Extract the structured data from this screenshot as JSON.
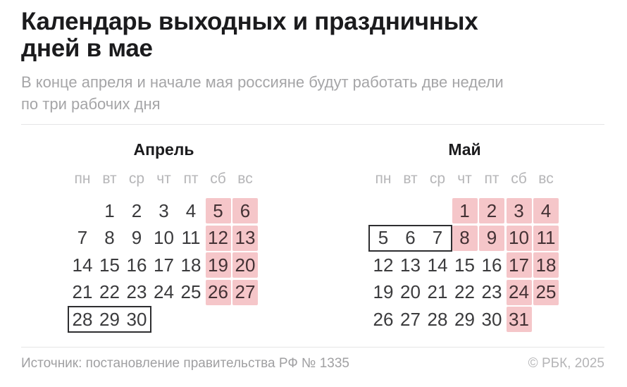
{
  "header": {
    "title_lines": [
      "Календарь выходных и праздничных",
      "дней в мае"
    ],
    "subtitle_lines": [
      "В конце апреля и начале мая россияне будут работать две недели",
      "по три рабочих дня"
    ]
  },
  "weekdays": [
    "пн",
    "вт",
    "ср",
    "чт",
    "пт",
    "сб",
    "вс"
  ],
  "calendars": [
    {
      "name": "Апрель",
      "weeks": [
        [
          "",
          "1",
          "2",
          "3",
          "4",
          "5",
          "6"
        ],
        [
          "7",
          "8",
          "9",
          "10",
          "11",
          "12",
          "13"
        ],
        [
          "14",
          "15",
          "16",
          "17",
          "18",
          "19",
          "20"
        ],
        [
          "21",
          "22",
          "23",
          "24",
          "25",
          "26",
          "27"
        ],
        [
          "28",
          "29",
          "30",
          "",
          "",
          "",
          ""
        ]
      ],
      "holidays": [
        "5",
        "6",
        "12",
        "13",
        "19",
        "20",
        "26",
        "27"
      ],
      "boxed_days": [
        "28",
        "29",
        "30"
      ]
    },
    {
      "name": "Май",
      "weeks": [
        [
          "",
          "",
          "",
          "1",
          "2",
          "3",
          "4"
        ],
        [
          "5",
          "6",
          "7",
          "8",
          "9",
          "10",
          "11"
        ],
        [
          "12",
          "13",
          "14",
          "15",
          "16",
          "17",
          "18"
        ],
        [
          "19",
          "20",
          "21",
          "22",
          "23",
          "24",
          "25"
        ],
        [
          "26",
          "27",
          "28",
          "29",
          "30",
          "31",
          ""
        ]
      ],
      "holidays": [
        "1",
        "2",
        "3",
        "4",
        "8",
        "9",
        "10",
        "11",
        "17",
        "18",
        "24",
        "25",
        "31"
      ],
      "boxed_days": [
        "5",
        "6",
        "7"
      ]
    }
  ],
  "footer": {
    "source": "Источник: постановление правительства РФ № 1335",
    "copyright": "© РБК, 2025"
  },
  "colors": {
    "title": "#1b1b1d",
    "muted": "#a5a5a7",
    "weekday": "#b6b6b8",
    "day": "#3b3b3d",
    "holiday_bg": "#f5c6c9",
    "holiday_day": "#433134",
    "box_border": "#2e2e30",
    "divider": "#e5e5e6",
    "footer_left": "#a0a0a2",
    "footer_right": "#b4b4b6"
  }
}
